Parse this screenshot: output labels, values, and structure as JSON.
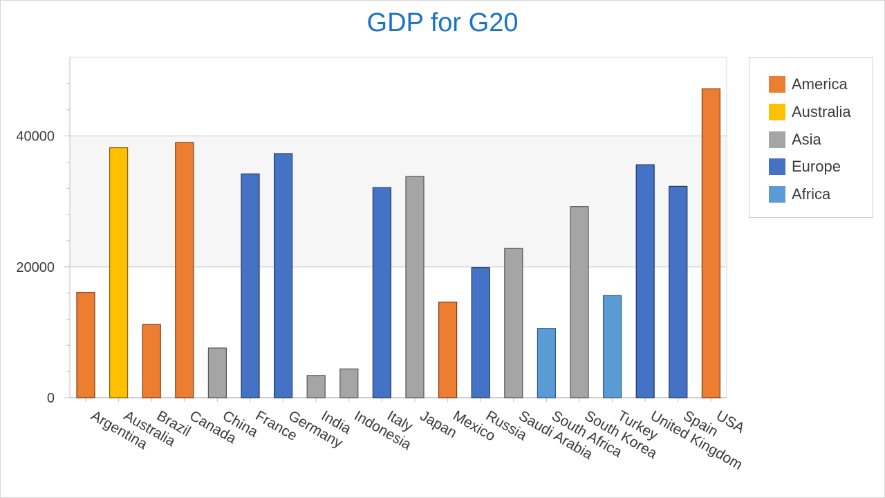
{
  "chart_data": {
    "type": "bar",
    "title": "GDP for G20",
    "xlabel": "",
    "ylabel": "",
    "ylim": [
      0,
      52000
    ],
    "yticks": [
      "0",
      "20000",
      "40000"
    ],
    "categories": [
      "Argentina",
      "Australia",
      "Brazil",
      "Canada",
      "China",
      "France",
      "Germany",
      "India",
      "Indonesia",
      "Italy",
      "Japan",
      "Mexico",
      "Russia",
      "Saudi Arabia",
      "South Africa",
      "South Korea",
      "Turkey",
      "United Kingdom",
      "Spain",
      "USA"
    ],
    "values": [
      16100,
      38200,
      11200,
      39000,
      7600,
      34200,
      37300,
      3400,
      4400,
      32100,
      33800,
      14600,
      19900,
      22800,
      10600,
      29200,
      15600,
      35600,
      32300,
      47200
    ],
    "regions": [
      "America",
      "Australia",
      "America",
      "America",
      "Asia",
      "Europe",
      "Europe",
      "Asia",
      "Asia",
      "Europe",
      "Asia",
      "America",
      "Europe",
      "Asia",
      "Africa",
      "Asia",
      "Africa",
      "Europe",
      "Europe",
      "America"
    ],
    "legend": [
      {
        "name": "America",
        "color": "#ed7d31",
        "stroke": "#7a3a10"
      },
      {
        "name": "Australia",
        "color": "#ffc000",
        "stroke": "#806000"
      },
      {
        "name": "Asia",
        "color": "#a5a5a5",
        "stroke": "#555555"
      },
      {
        "name": "Europe",
        "color": "#4472c4",
        "stroke": "#1f3864"
      },
      {
        "name": "Africa",
        "color": "#5b9bd5",
        "stroke": "#2e5a88"
      }
    ],
    "legend_position": "right",
    "grid": true
  }
}
